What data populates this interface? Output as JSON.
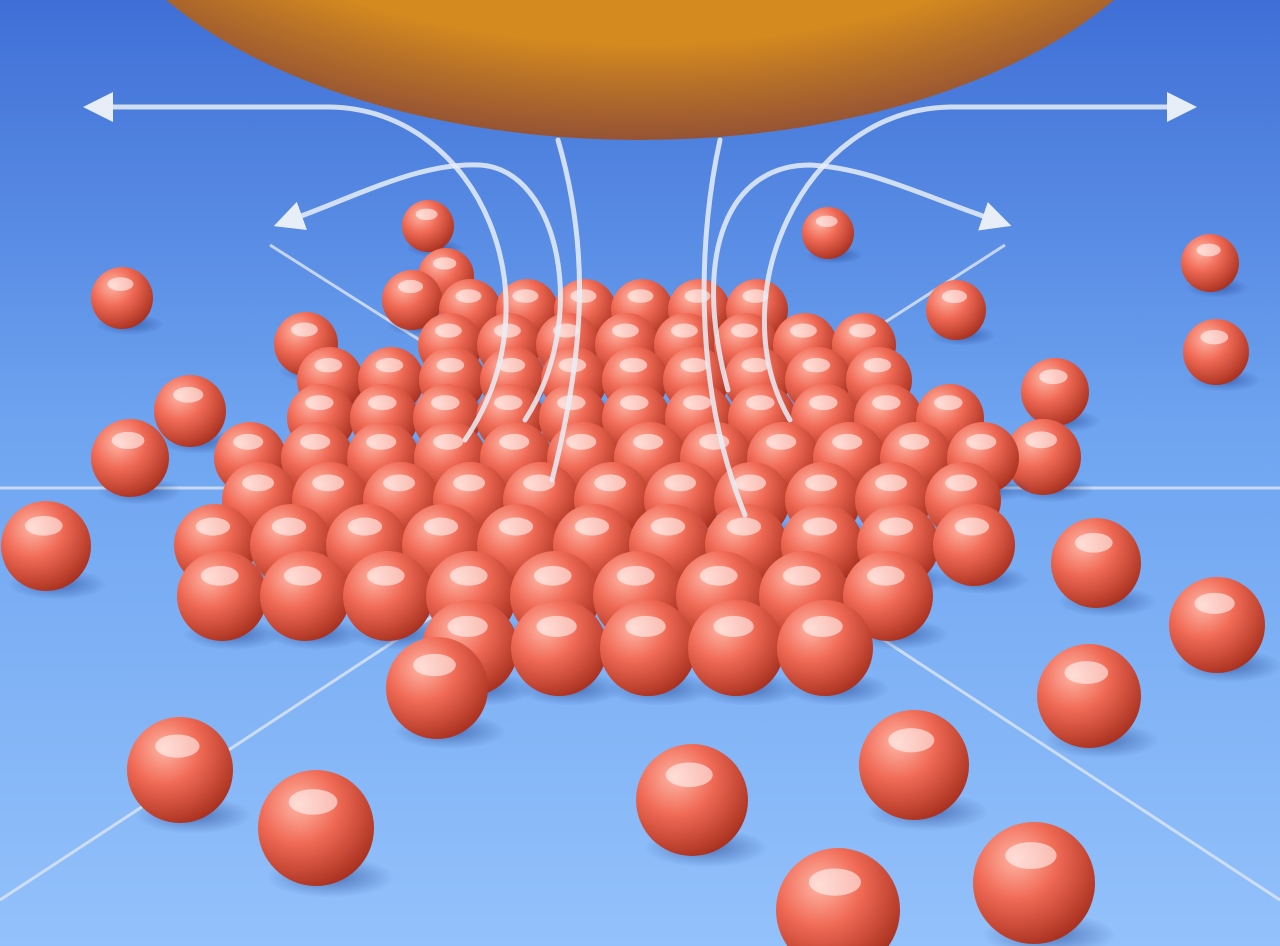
{
  "scene": {
    "colors": {
      "floor_far": "#3f6fd6",
      "floor_mid": "#6ea4f0",
      "floor_near": "#93c1fb",
      "sphere_light": "#ffb5a6",
      "sphere_mid": "#f06a55",
      "sphere_dark": "#a8301f",
      "probe_core": "#d48a1f",
      "probe_edge": "#8e3b1e",
      "arrow": "#e8eef8",
      "grid_line": "#dde6f3"
    }
  }
}
